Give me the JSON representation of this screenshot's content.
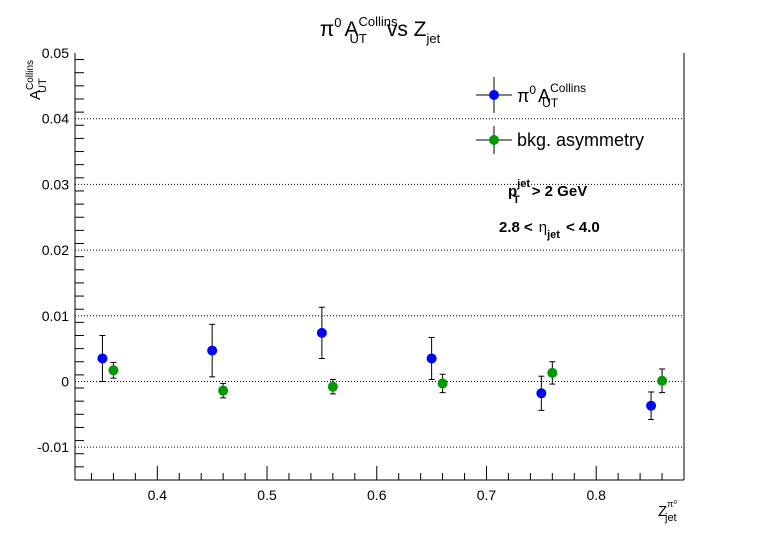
{
  "chart_data": {
    "type": "scatter",
    "title": {
      "main": "π",
      "main_sup": "0",
      "a": "A",
      "a_sup": "Collins",
      "a_sub": "UT",
      "vs": "vs Z",
      "vs_sub": "jet"
    },
    "ylabel": {
      "main": "A",
      "sup": "Collins",
      "sub": "UT"
    },
    "xlabel": {
      "main": "Z",
      "sup": "π⁰",
      "sub": "jet"
    },
    "xlim": [
      0.325,
      0.88
    ],
    "ylim": [
      -0.015,
      0.05
    ],
    "x_ticks": [
      "0.4",
      "0.5",
      "0.6",
      "0.7",
      "0.8"
    ],
    "x_tick_values": [
      0.4,
      0.5,
      0.6,
      0.7,
      0.8
    ],
    "y_ticks": [
      "-0.01",
      "0",
      "0.01",
      "0.02",
      "0.03",
      "0.04",
      "0.05"
    ],
    "y_tick_values": [
      -0.01,
      0,
      0.01,
      0.02,
      0.03,
      0.04,
      0.05
    ],
    "grid": {
      "horizontal": true,
      "vertical": false
    },
    "legend_position": "top-right",
    "series": [
      {
        "name": {
          "main": "π",
          "main_sup": "0",
          "a": "A",
          "a_sup": "Collins",
          "a_sub": "UT"
        },
        "color": "#0000ff",
        "x": [
          0.35,
          0.45,
          0.55,
          0.65,
          0.75,
          0.85
        ],
        "y": [
          0.0035,
          0.0047,
          0.0074,
          0.0035,
          -0.0018,
          -0.0037
        ],
        "yerr": [
          0.0035,
          0.004,
          0.0039,
          0.0032,
          0.0026,
          0.0021
        ]
      },
      {
        "name": "bkg. asymmetry",
        "color": "#009900",
        "x": [
          0.36,
          0.46,
          0.56,
          0.66,
          0.76,
          0.86
        ],
        "y": [
          0.0017,
          -0.0014,
          -0.0008,
          -0.0003,
          0.0013,
          0.0001
        ],
        "yerr": [
          0.0012,
          0.0011,
          0.0011,
          0.0014,
          0.0017,
          0.0018
        ]
      }
    ],
    "annotations": {
      "pt": {
        "main": "p",
        "sub": "T",
        "sup": "jet",
        "rest": "> 2 GeV"
      },
      "eta": {
        "pre": "2.8 <",
        "sym": "η",
        "sub": "jet",
        "post": "< 4.0"
      }
    }
  }
}
